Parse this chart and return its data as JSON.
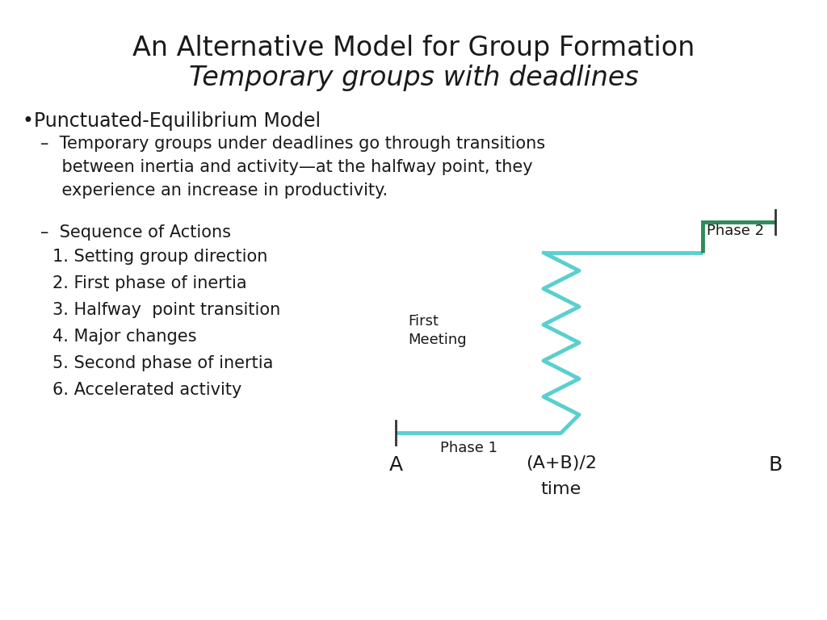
{
  "title_line1": "An Alternative Model for Group Formation",
  "title_line2": "Temporary groups with deadlines",
  "title_fontsize": 24,
  "background_color": "#ffffff",
  "text_color": "#1a1a1a",
  "bullet_text": "•Punctuated-Equilibrium Model",
  "bullet_fontsize": 17,
  "sub_bullet_text": "–  Temporary groups under deadlines go through transitions\n    between inertia and activity—at the halfway point, they\n    experience an increase in productivity.",
  "sub_bullet_fontsize": 15,
  "sequence_header": "–  Sequence of Actions",
  "sequence_items": [
    "1. Setting group direction",
    "2. First phase of inertia",
    "3. Halfway  point transition",
    "4. Major changes",
    "5. Second phase of inertia",
    "6. Accelerated activity"
  ],
  "sequence_fontsize": 15,
  "diagram_color_teal": "#5bcfcf",
  "diagram_color_green": "#2e8b57",
  "label_A": "A",
  "label_midpoint": "(A+B)/2",
  "label_B": "B",
  "label_time": "time",
  "label_phase1": "Phase 1",
  "label_phase2": "Phase 2",
  "label_first_meeting": "First\nMeeting",
  "diagram_label_fontsize": 13,
  "diagram_axis_label_fontsize": 18
}
